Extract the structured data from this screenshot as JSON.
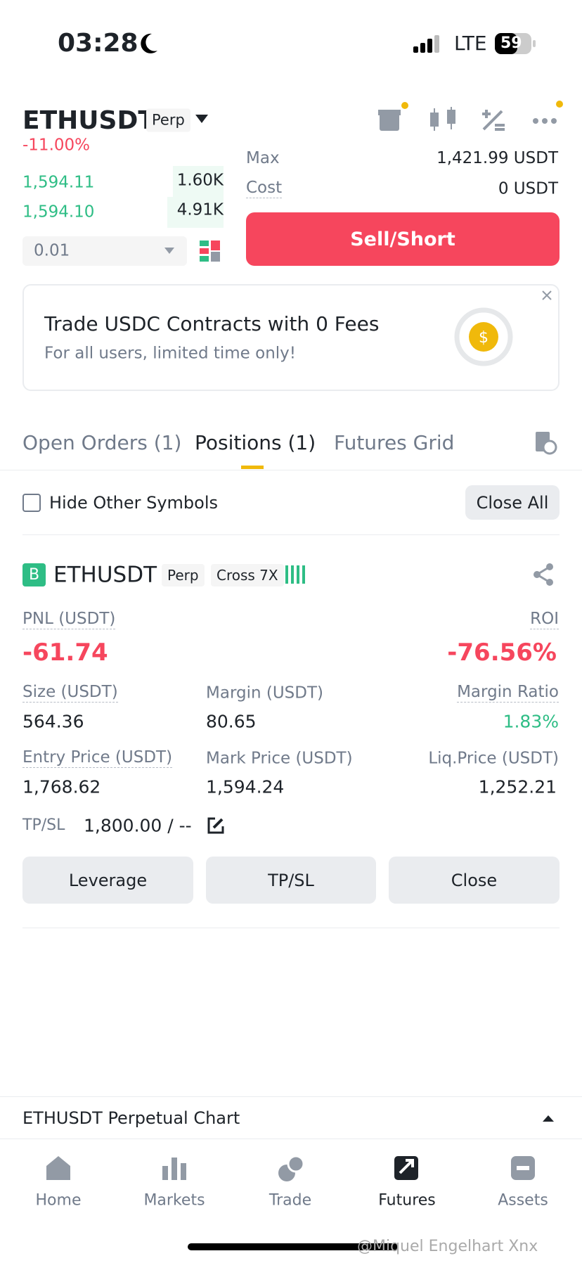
{
  "status_bar": {
    "time": "03:28",
    "network": "LTE",
    "battery": "59"
  },
  "header": {
    "symbol": "ETHUSDT",
    "badge": "Perp",
    "change": "-11.00%"
  },
  "order_book": {
    "rows": [
      [
        "1,594.11",
        "1.60K"
      ],
      [
        "1,594.10",
        "4.91K"
      ]
    ],
    "amount": "0.01"
  },
  "order_form": {
    "max_label": "Max",
    "max_value": "1,421.99 USDT",
    "cost_label": "Cost",
    "cost_value": "0 USDT",
    "sell_button": "Sell/Short"
  },
  "banner": {
    "title": "Trade USDC Contracts with 0 Fees",
    "subtitle": "For all users, limited time only!"
  },
  "tabs": [
    "Open Orders (1)",
    "Positions (1)",
    "Futures Grid"
  ],
  "filter": {
    "checkbox": "Hide Other Symbols",
    "close_all": "Close All"
  },
  "position": {
    "side": "B",
    "symbol": "ETHUSDT",
    "badge": "Perp",
    "margin_mode": "Cross 7X",
    "pnl_label": "PNL (USDT)",
    "pnl": "-61.74",
    "roi_label": "ROI",
    "roi": "-76.56%",
    "size_label": "Size (USDT)",
    "size": "564.36",
    "margin_label": "Margin (USDT)",
    "margin": "80.65",
    "ratio_label": "Margin Ratio",
    "ratio": "1.83%",
    "entry_label": "Entry Price (USDT)",
    "entry": "1,768.62",
    "mark_label": "Mark Price (USDT)",
    "mark": "1,594.24",
    "liq_label": "Liq.Price (USDT)",
    "liq": "1,252.21",
    "tpsl_label": "TP/SL",
    "tpsl": "1,800.00 / --",
    "buttons": [
      "Leverage",
      "TP/SL",
      "Close"
    ]
  },
  "chart_bar": "ETHUSDT Perpetual  Chart",
  "nav": [
    "Home",
    "Markets",
    "Trade",
    "Futures",
    "Assets"
  ],
  "watermark": "@Miquel Engelhart Xnx"
}
